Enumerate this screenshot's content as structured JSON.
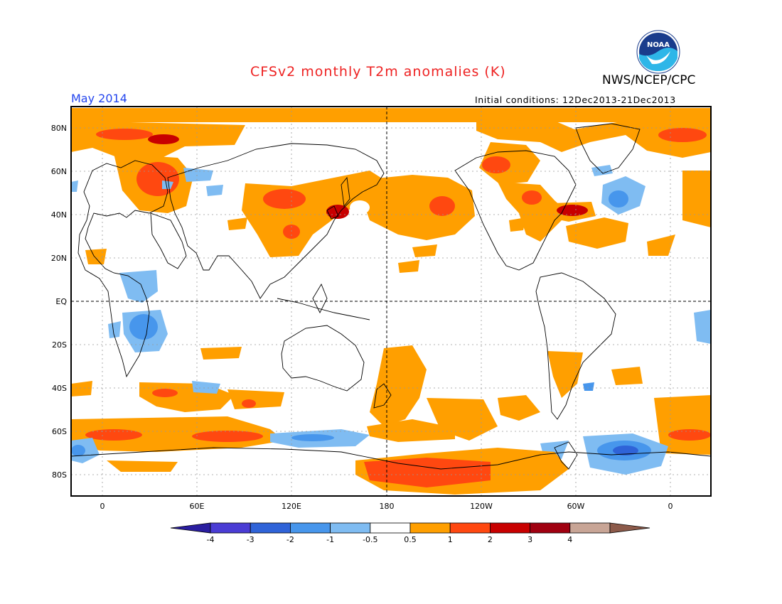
{
  "header": {
    "title": "CFSv2 monthly T2m anomalies (K)",
    "org": "NWS/NCEP/CPC",
    "valid_month": "May 2014",
    "initial_conditions": "Initial conditions: 12Dec2013-21Dec2013"
  },
  "logo": {
    "text": "NOAA",
    "icon": "noaa-logo-icon"
  },
  "map": {
    "projection": "cylindrical equidistant",
    "lat_labels": [
      "80N",
      "60N",
      "40N",
      "20N",
      "EQ",
      "20S",
      "40S",
      "60S",
      "80S"
    ],
    "lon_labels": [
      "0",
      "60E",
      "120E",
      "180",
      "120W",
      "60W",
      "0"
    ],
    "grid": "dotted",
    "reference_lines": [
      "Equator (dashed)",
      "180 meridian (dashed)"
    ]
  },
  "legend": {
    "colors": [
      "#2a1ea0",
      "#4a3cd4",
      "#2f63d8",
      "#4796ec",
      "#7fbcf2",
      "#ffffff",
      "#ff9f00",
      "#ff4810",
      "#c80000",
      "#a00010",
      "#c8a596",
      "#8c5a4a"
    ],
    "tick_labels": [
      "-4",
      "-3",
      "-2",
      "-1",
      "-0.5",
      "0.5",
      "1",
      "2",
      "3",
      "4"
    ]
  }
}
